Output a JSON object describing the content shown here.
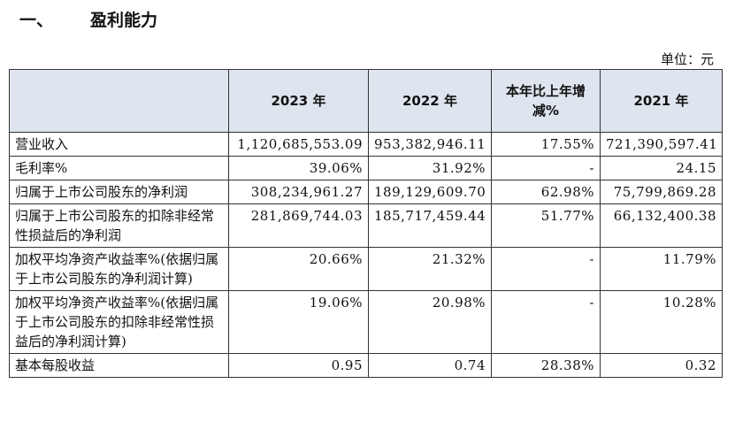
{
  "header": {
    "number": "一、",
    "title": "盈利能力",
    "unit": "单位：元"
  },
  "table": {
    "columns": [
      "",
      "2023 年",
      "2022 年",
      "本年比上年增减%",
      "2021 年"
    ],
    "rows": [
      [
        "营业收入",
        "1,120,685,553.09",
        "953,382,946.11",
        "17.55%",
        "721,390,597.41"
      ],
      [
        "毛利率%",
        "39.06%",
        "31.92%",
        "-",
        "24.15"
      ],
      [
        "归属于上市公司股东的净利润",
        "308,234,961.27",
        "189,129,609.70",
        "62.98%",
        "75,799,869.28"
      ],
      [
        "归属于上市公司股东的扣除非经常性损益后的净利润",
        "281,869,744.03",
        "185,717,459.44",
        "51.77%",
        "66,132,400.38"
      ],
      [
        "加权平均净资产收益率%(依据归属于上市公司股东的净利润计算)",
        "20.66%",
        "21.32%",
        "-",
        "11.79%"
      ],
      [
        "加权平均净资产收益率%(依据归属于上市公司股东的扣除非经常性损益后的净利润计算)",
        "19.06%",
        "20.98%",
        "-",
        "10.28%"
      ],
      [
        "基本每股收益",
        "0.95",
        "0.74",
        "28.38%",
        "0.32"
      ]
    ]
  }
}
